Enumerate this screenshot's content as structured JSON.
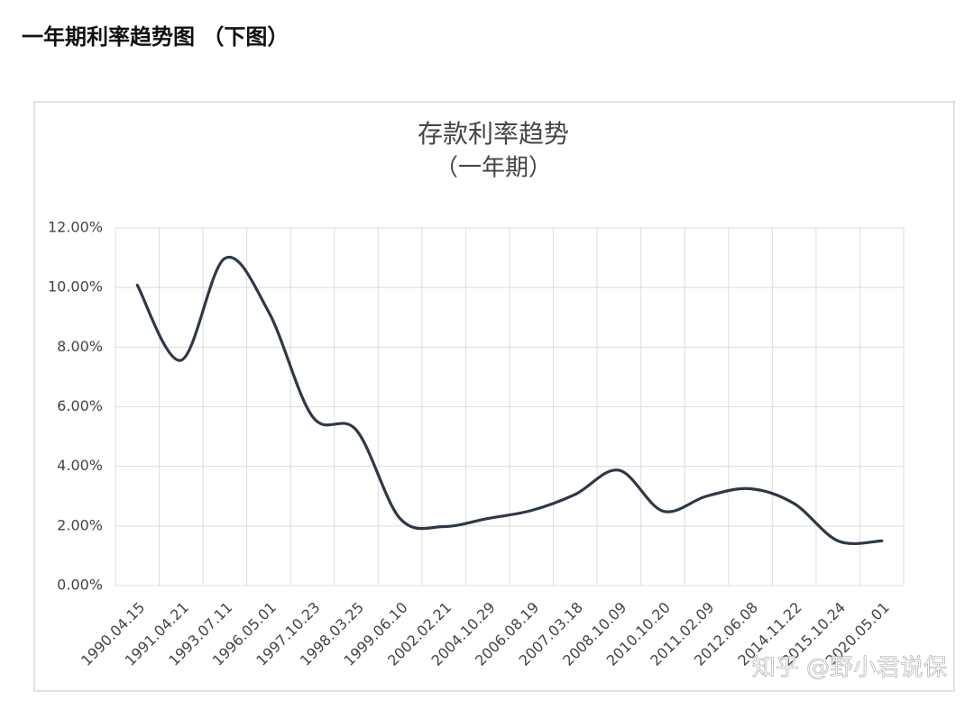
{
  "heading": "一年期利率趋势图 （下图）",
  "watermark": "知乎 @野小君说保",
  "chart_data": {
    "type": "line",
    "title": "存款利率趋势",
    "subtitle": "（一年期）",
    "categories": [
      "1990.04.15",
      "1991.04.21",
      "1993.07.11",
      "1996.05.01",
      "1997.10.23",
      "1998.03.25",
      "1999.06.10",
      "2002.02.21",
      "2004.10.29",
      "2006.08.19",
      "2007.03.18",
      "2008.10.09",
      "2010.10.20",
      "2011.02.09",
      "2012.06.08",
      "2014.11.22",
      "2015.10.24",
      "2020.05.01"
    ],
    "values": [
      10.08,
      7.56,
      10.98,
      9.18,
      5.67,
      5.22,
      2.25,
      1.98,
      2.25,
      2.52,
      3.06,
      3.87,
      2.5,
      3.0,
      3.25,
      2.75,
      1.5,
      1.5
    ],
    "color": "#2e3848",
    "ylim": [
      0,
      12
    ],
    "yticks": [
      {
        "value": 0,
        "label": "0.00%"
      },
      {
        "value": 2,
        "label": "2.00%"
      },
      {
        "value": 4,
        "label": "4.00%"
      },
      {
        "value": 6,
        "label": "6.00%"
      },
      {
        "value": 8,
        "label": "8.00%"
      },
      {
        "value": 10,
        "label": "10.00%"
      },
      {
        "value": 12,
        "label": "12.00%"
      }
    ],
    "grid": true
  }
}
